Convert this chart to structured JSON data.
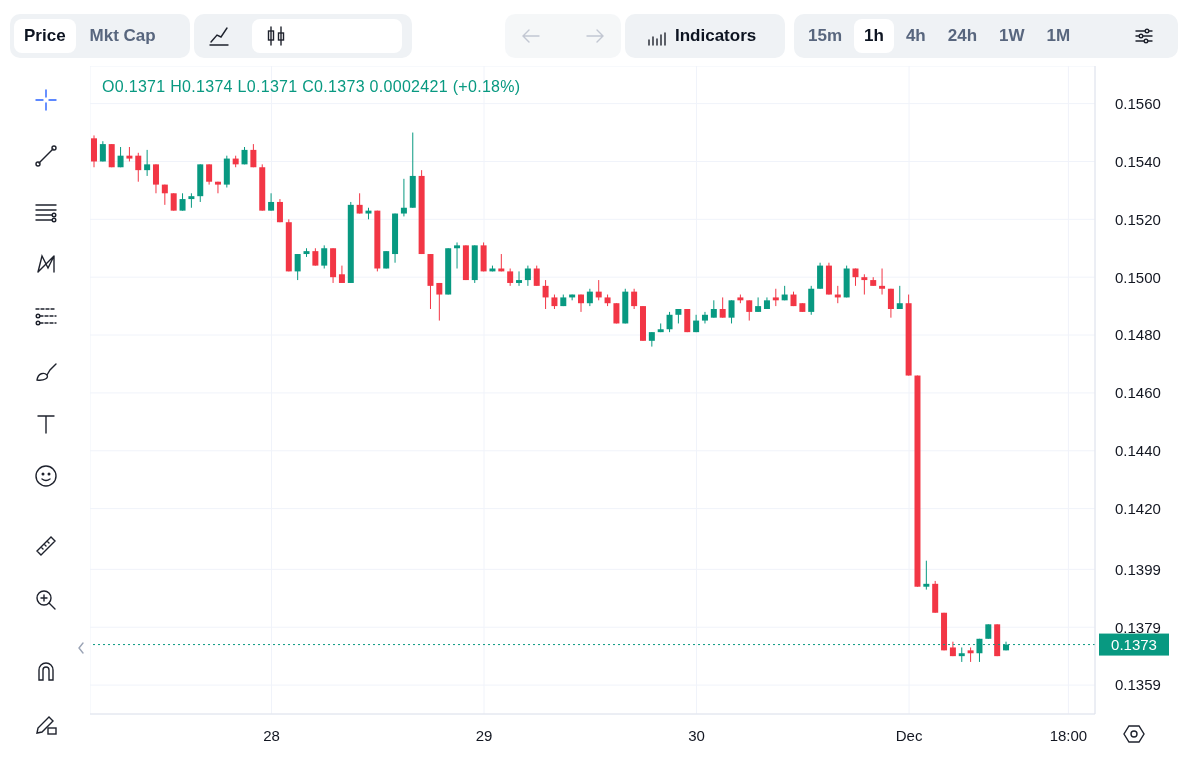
{
  "chart_data": {
    "type": "candlestick",
    "annotations": [
      "O0.1371 H0.1374 L0.1371 C0.1373 0.0002421 (+0.18%)",
      "Price",
      "Mkt Cap",
      "Indicators",
      "15m",
      "1h",
      "4h",
      "24h",
      "1W",
      "1M"
    ],
    "x": [
      "--11-27T04:00",
      "--11-27T05:00",
      "--11-27T06:00",
      "--11-27T07:00",
      "--11-27T08:00",
      "--11-27T09:00",
      "--11-27T10:00",
      "--11-27T11:00",
      "--11-27T12:00",
      "--11-27T13:00",
      "--11-27T14:00",
      "--11-27T15:00",
      "--11-27T16:00",
      "--11-27T17:00",
      "--11-27T18:00",
      "--11-27T19:00",
      "--11-27T20:00",
      "--11-27T21:00",
      "--11-27T22:00",
      "--11-27T23:00",
      "--11-28T00:00",
      "--11-28T01:00",
      "--11-28T02:00",
      "--11-28T03:00",
      "--11-28T04:00",
      "--11-28T05:00",
      "--11-28T06:00",
      "--11-28T07:00",
      "--11-28T08:00",
      "--11-28T09:00",
      "--11-28T10:00",
      "--11-28T11:00",
      "--11-28T12:00",
      "--11-28T13:00",
      "--11-28T14:00",
      "--11-28T15:00",
      "--11-28T16:00",
      "--11-28T17:00",
      "--11-28T18:00",
      "--11-28T19:00",
      "--11-28T20:00",
      "--11-28T21:00",
      "--11-28T22:00",
      "--11-28T23:00",
      "--11-29T00:00",
      "--11-29T01:00",
      "--11-29T02:00",
      "--11-29T03:00",
      "--11-29T04:00",
      "--11-29T05:00",
      "--11-29T06:00",
      "--11-29T07:00",
      "--11-29T08:00",
      "--11-29T09:00",
      "--11-29T10:00",
      "--11-29T11:00",
      "--11-29T12:00",
      "--11-29T13:00",
      "--11-29T14:00",
      "--11-29T15:00",
      "--11-29T16:00",
      "--11-29T17:00",
      "--11-29T18:00",
      "--11-29T19:00",
      "--11-29T20:00",
      "--11-29T21:00",
      "--11-29T22:00",
      "--11-29T23:00",
      "--11-30T00:00",
      "--11-30T01:00",
      "--11-30T02:00",
      "--11-30T03:00",
      "--11-30T04:00",
      "--11-30T05:00",
      "--11-30T06:00",
      "--11-30T07:00",
      "--11-30T08:00",
      "--11-30T09:00",
      "--11-30T10:00",
      "--11-30T11:00",
      "--11-30T12:00",
      "--11-30T13:00",
      "--11-30T14:00",
      "--11-30T15:00",
      "--11-30T16:00",
      "--11-30T17:00",
      "--11-30T18:00",
      "--11-30T19:00",
      "--11-30T20:00",
      "--11-30T21:00",
      "--11-30T22:00",
      "--11-30T23:00",
      "--12-01T00:00",
      "--12-01T01:00",
      "--12-01T02:00",
      "--12-01T03:00",
      "--12-01T04:00",
      "--12-01T05:00",
      "--12-01T06:00",
      "--12-01T07:00",
      "--12-01T08:00",
      "--12-01T09:00",
      "--12-01T10:00",
      "--12-01T11:00"
    ],
    "ohlc": [
      [
        0.1548,
        0.1549,
        0.1538,
        0.154
      ],
      [
        0.154,
        0.1547,
        0.154,
        0.1546
      ],
      [
        0.1546,
        0.1546,
        0.1538,
        0.1538
      ],
      [
        0.1538,
        0.1545,
        0.1538,
        0.1542
      ],
      [
        0.1542,
        0.1545,
        0.154,
        0.1541
      ],
      [
        0.1542,
        0.1543,
        0.1533,
        0.1537
      ],
      [
        0.1537,
        0.1544,
        0.1535,
        0.1539
      ],
      [
        0.1539,
        0.1539,
        0.1529,
        0.1532
      ],
      [
        0.1532,
        0.1532,
        0.1525,
        0.1529
      ],
      [
        0.1529,
        0.1529,
        0.1523,
        0.1523
      ],
      [
        0.1523,
        0.1529,
        0.1523,
        0.1527
      ],
      [
        0.1527,
        0.1529,
        0.1524,
        0.1528
      ],
      [
        0.1528,
        0.1539,
        0.1526,
        0.1539
      ],
      [
        0.1539,
        0.1539,
        0.1532,
        0.1533
      ],
      [
        0.1533,
        0.1533,
        0.1529,
        0.1532
      ],
      [
        0.1532,
        0.1542,
        0.1531,
        0.1541
      ],
      [
        0.1541,
        0.1542,
        0.1538,
        0.1539
      ],
      [
        0.1539,
        0.1545,
        0.1539,
        0.1544
      ],
      [
        0.1544,
        0.1546,
        0.1538,
        0.1538
      ],
      [
        0.1538,
        0.1539,
        0.1523,
        0.1523
      ],
      [
        0.1523,
        0.1529,
        0.1523,
        0.1526
      ],
      [
        0.1526,
        0.1527,
        0.1519,
        0.1519
      ],
      [
        0.1519,
        0.152,
        0.1502,
        0.1502
      ],
      [
        0.1502,
        0.1508,
        0.1499,
        0.1508
      ],
      [
        0.1508,
        0.151,
        0.1507,
        0.1509
      ],
      [
        0.1509,
        0.151,
        0.1504,
        0.1504
      ],
      [
        0.1504,
        0.1511,
        0.1503,
        0.151
      ],
      [
        0.151,
        0.151,
        0.1498,
        0.15
      ],
      [
        0.1501,
        0.1504,
        0.1498,
        0.1498
      ],
      [
        0.1498,
        0.1526,
        0.1498,
        0.1525
      ],
      [
        0.1525,
        0.1529,
        0.1522,
        0.1522
      ],
      [
        0.1522,
        0.1524,
        0.152,
        0.1523
      ],
      [
        0.1523,
        0.1523,
        0.1502,
        0.1503
      ],
      [
        0.1503,
        0.1509,
        0.1503,
        0.1509
      ],
      [
        0.1508,
        0.1522,
        0.1505,
        0.1522
      ],
      [
        0.1522,
        0.1534,
        0.1521,
        0.1524
      ],
      [
        0.1524,
        0.155,
        0.1524,
        0.1535
      ],
      [
        0.1535,
        0.1537,
        0.1508,
        0.1508
      ],
      [
        0.1508,
        0.1508,
        0.1489,
        0.1497
      ],
      [
        0.1498,
        0.1498,
        0.1485,
        0.1494
      ],
      [
        0.1494,
        0.151,
        0.1494,
        0.151
      ],
      [
        0.151,
        0.1512,
        0.1503,
        0.1511
      ],
      [
        0.1511,
        0.1511,
        0.1499,
        0.1499
      ],
      [
        0.1499,
        0.1511,
        0.1498,
        0.1511
      ],
      [
        0.1511,
        0.1512,
        0.1502,
        0.1502
      ],
      [
        0.1502,
        0.1504,
        0.1502,
        0.1503
      ],
      [
        0.1503,
        0.1508,
        0.1502,
        0.1502
      ],
      [
        0.1502,
        0.1503,
        0.1497,
        0.1498
      ],
      [
        0.1498,
        0.1502,
        0.1497,
        0.1499
      ],
      [
        0.1499,
        0.1504,
        0.1497,
        0.1503
      ],
      [
        0.1503,
        0.1504,
        0.1497,
        0.1497
      ],
      [
        0.1497,
        0.1499,
        0.1489,
        0.1493
      ],
      [
        0.1493,
        0.1494,
        0.1489,
        0.149
      ],
      [
        0.149,
        0.1494,
        0.149,
        0.1493
      ],
      [
        0.1493,
        0.1494,
        0.1492,
        0.1494
      ],
      [
        0.1494,
        0.1494,
        0.1488,
        0.1491
      ],
      [
        0.1491,
        0.1496,
        0.149,
        0.1495
      ],
      [
        0.1495,
        0.1499,
        0.1492,
        0.1493
      ],
      [
        0.1493,
        0.1494,
        0.149,
        0.1491
      ],
      [
        0.1491,
        0.1491,
        0.1484,
        0.1484
      ],
      [
        0.1484,
        0.1496,
        0.1484,
        0.1495
      ],
      [
        0.1495,
        0.1496,
        0.1489,
        0.149
      ],
      [
        0.149,
        0.149,
        0.1478,
        0.1478
      ],
      [
        0.1478,
        0.1481,
        0.1476,
        0.1481
      ],
      [
        0.1481,
        0.1484,
        0.1481,
        0.1482
      ],
      [
        0.1482,
        0.1488,
        0.1481,
        0.1487
      ],
      [
        0.1487,
        0.1489,
        0.1484,
        0.1489
      ],
      [
        0.1489,
        0.1489,
        0.1481,
        0.1481
      ],
      [
        0.1481,
        0.1487,
        0.1481,
        0.1485
      ],
      [
        0.1485,
        0.1488,
        0.1484,
        0.1487
      ],
      [
        0.1486,
        0.1492,
        0.1486,
        0.1489
      ],
      [
        0.1489,
        0.1493,
        0.1486,
        0.1486
      ],
      [
        0.1486,
        0.1492,
        0.1484,
        0.1492
      ],
      [
        0.1493,
        0.1494,
        0.1491,
        0.1492
      ],
      [
        0.1492,
        0.1492,
        0.1485,
        0.1488
      ],
      [
        0.1488,
        0.1493,
        0.1488,
        0.149
      ],
      [
        0.1489,
        0.1493,
        0.1489,
        0.1492
      ],
      [
        0.1493,
        0.1496,
        0.149,
        0.1492
      ],
      [
        0.1492,
        0.1497,
        0.1492,
        0.1494
      ],
      [
        0.1494,
        0.1495,
        0.149,
        0.149
      ],
      [
        0.1491,
        0.1491,
        0.1488,
        0.1488
      ],
      [
        0.1488,
        0.1497,
        0.1487,
        0.1496
      ],
      [
        0.1496,
        0.1505,
        0.1496,
        0.1504
      ],
      [
        0.1504,
        0.1505,
        0.1494,
        0.1494
      ],
      [
        0.1494,
        0.1497,
        0.1491,
        0.1493
      ],
      [
        0.1493,
        0.1504,
        0.1493,
        0.1503
      ],
      [
        0.1503,
        0.1503,
        0.1497,
        0.15
      ],
      [
        0.15,
        0.1501,
        0.1494,
        0.1499
      ],
      [
        0.1499,
        0.15,
        0.1497,
        0.1497
      ],
      [
        0.1497,
        0.1503,
        0.1494,
        0.1496
      ],
      [
        0.1496,
        0.1496,
        0.1486,
        0.1489
      ],
      [
        0.1489,
        0.1497,
        0.1489,
        0.1491
      ],
      [
        0.1491,
        0.1494,
        0.1466,
        0.1466
      ],
      [
        0.1466,
        0.1466,
        0.1393,
        0.1393
      ],
      [
        0.1393,
        0.1402,
        0.1392,
        0.1394
      ],
      [
        0.1394,
        0.1395,
        0.1384,
        0.1384
      ],
      [
        0.1384,
        0.1384,
        0.1371,
        0.1371
      ],
      [
        0.1372,
        0.1374,
        0.1369,
        0.1369
      ],
      [
        0.1369,
        0.1372,
        0.1367,
        0.137
      ],
      [
        0.1371,
        0.1372,
        0.1367,
        0.137
      ],
      [
        0.137,
        0.1375,
        0.1367,
        0.1375
      ],
      [
        0.1375,
        0.138,
        0.1375,
        0.138
      ],
      [
        0.138,
        0.138,
        0.1369,
        0.1369
      ],
      [
        0.1371,
        0.1374,
        0.1371,
        0.1373
      ]
    ],
    "colors": [
      "#f23645",
      "#089981",
      "#f23645",
      "#089981",
      "#f23645",
      "#f23645",
      "#089981",
      "#f23645",
      "#f23645",
      "#f23645",
      "#089981",
      "#089981",
      "#089981",
      "#f23645",
      "#f23645",
      "#089981",
      "#f23645",
      "#089981",
      "#f23645",
      "#f23645",
      "#089981",
      "#f23645",
      "#f23645",
      "#089981",
      "#089981",
      "#f23645",
      "#089981",
      "#f23645",
      "#f23645",
      "#089981",
      "#f23645",
      "#089981",
      "#f23645",
      "#089981",
      "#089981",
      "#089981",
      "#089981",
      "#f23645",
      "#f23645",
      "#f23645",
      "#089981",
      "#089981",
      "#f23645",
      "#089981",
      "#f23645",
      "#089981",
      "#f23645",
      "#f23645",
      "#089981",
      "#089981",
      "#f23645",
      "#f23645",
      "#f23645",
      "#089981",
      "#089981",
      "#f23645",
      "#089981",
      "#f23645",
      "#f23645",
      "#f23645",
      "#089981",
      "#f23645",
      "#f23645",
      "#089981",
      "#089981",
      "#089981",
      "#089981",
      "#f23645",
      "#089981",
      "#089981",
      "#089981",
      "#f23645",
      "#089981",
      "#f23645",
      "#f23645",
      "#089981",
      "#089981",
      "#f23645",
      "#089981",
      "#f23645",
      "#f23645",
      "#089981",
      "#089981",
      "#f23645",
      "#f23645",
      "#089981",
      "#f23645",
      "#f23645",
      "#f23645",
      "#f23645",
      "#f23645",
      "#089981",
      "#f23645",
      "#f23645",
      "#089981",
      "#f23645",
      "#f23645",
      "#f23645",
      "#089981",
      "#f23645",
      "#089981",
      "#089981",
      "#f23645",
      "#089981"
    ],
    "xlim": [
      "--11-27T03:30",
      "--12-01T21:00"
    ],
    "xticks": [
      {
        "value": "--11-28",
        "label": "28"
      },
      {
        "value": "--11-29",
        "label": "29"
      },
      {
        "value": "--11-30",
        "label": "30"
      },
      {
        "value": "--12-01",
        "label": "Dec"
      },
      {
        "value": "--12-01T18:00",
        "label": "18:00"
      }
    ],
    "ylim": [
      0.1349,
      0.1573
    ],
    "yticks": [
      {
        "value": 0.1359,
        "label": "0.1359"
      },
      {
        "value": 0.1379,
        "label": "0.1379"
      },
      {
        "value": 0.1399,
        "label": "0.1399"
      },
      {
        "value": 0.142,
        "label": "0.1420"
      },
      {
        "value": 0.144,
        "label": "0.1440"
      },
      {
        "value": 0.146,
        "label": "0.1460"
      },
      {
        "value": 0.148,
        "label": "0.1480"
      },
      {
        "value": 0.15,
        "label": "0.1500"
      },
      {
        "value": 0.152,
        "label": "0.1520"
      },
      {
        "value": 0.154,
        "label": "0.1540"
      },
      {
        "value": 0.156,
        "label": "0.1560"
      }
    ],
    "grid": true,
    "ref_lines": [
      {
        "axis": "y",
        "value": 0.1373,
        "label": "0.1373",
        "color": "#089981",
        "line_style": "dotted"
      }
    ]
  }
}
